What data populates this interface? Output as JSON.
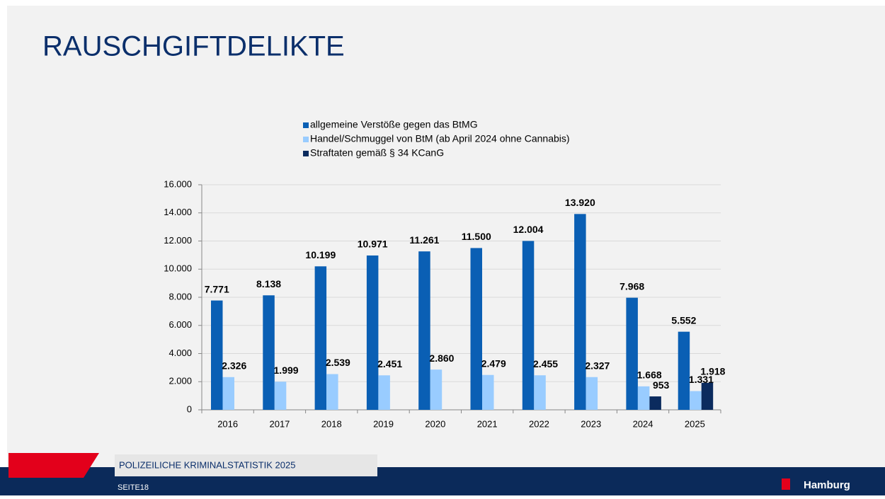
{
  "chart_data": {
    "type": "bar",
    "title": "RAUSCHGIFTDELIKTE",
    "categories": [
      "2016",
      "2017",
      "2018",
      "2019",
      "2020",
      "2021",
      "2022",
      "2023",
      "2024",
      "2025"
    ],
    "series": [
      {
        "name": "allgemeine Verstöße gegen das BtMG",
        "color": "#0a5fb4",
        "values": [
          7771,
          8138,
          10199,
          10971,
          11261,
          11500,
          12004,
          13920,
          7968,
          5552
        ],
        "value_labels": [
          "7.771",
          "8.138",
          "10.199",
          "10.971",
          "11.261",
          "11.500",
          "12.004",
          "13.920",
          "7.968",
          "5.552"
        ]
      },
      {
        "name": "Handel/Schmuggel von BtM (ab April 2024 ohne Cannabis)",
        "color": "#99ccff",
        "values": [
          2326,
          1999,
          2539,
          2451,
          2860,
          2479,
          2455,
          2327,
          1668,
          1331
        ],
        "value_labels": [
          "2.326",
          "1.999",
          "2.539",
          "2.451",
          "2.860",
          "2.479",
          "2.455",
          "2.327",
          "1.668",
          "1.331"
        ]
      },
      {
        "name": "Straftaten gemäß § 34 KCanG",
        "color": "#0b2b5e",
        "values": [
          null,
          null,
          null,
          null,
          null,
          null,
          null,
          null,
          953,
          1918
        ],
        "value_labels": [
          null,
          null,
          null,
          null,
          null,
          null,
          null,
          null,
          "953",
          "1.918"
        ]
      }
    ],
    "ylim": [
      0,
      16000
    ],
    "yticks": [
      0,
      {
        "value": 2000,
        "label": "2.000"
      },
      {
        "value": 4000,
        "label": "4.000"
      },
      {
        "value": 6000,
        "label": "6.000"
      },
      {
        "value": 8000,
        "label": "8.000"
      },
      {
        "value": 10000,
        "label": "10.000"
      },
      {
        "value": 12000,
        "label": "12.000"
      },
      {
        "value": 14000,
        "label": "14.000"
      },
      {
        "value": 16000,
        "label": "16.000"
      }
    ],
    "grid": true,
    "legend": "top"
  },
  "footer": {
    "report": "POLIZEILICHE KRIMINALSTATISTIK 2025",
    "page": "SEITE18",
    "logo": "Hamburg"
  }
}
